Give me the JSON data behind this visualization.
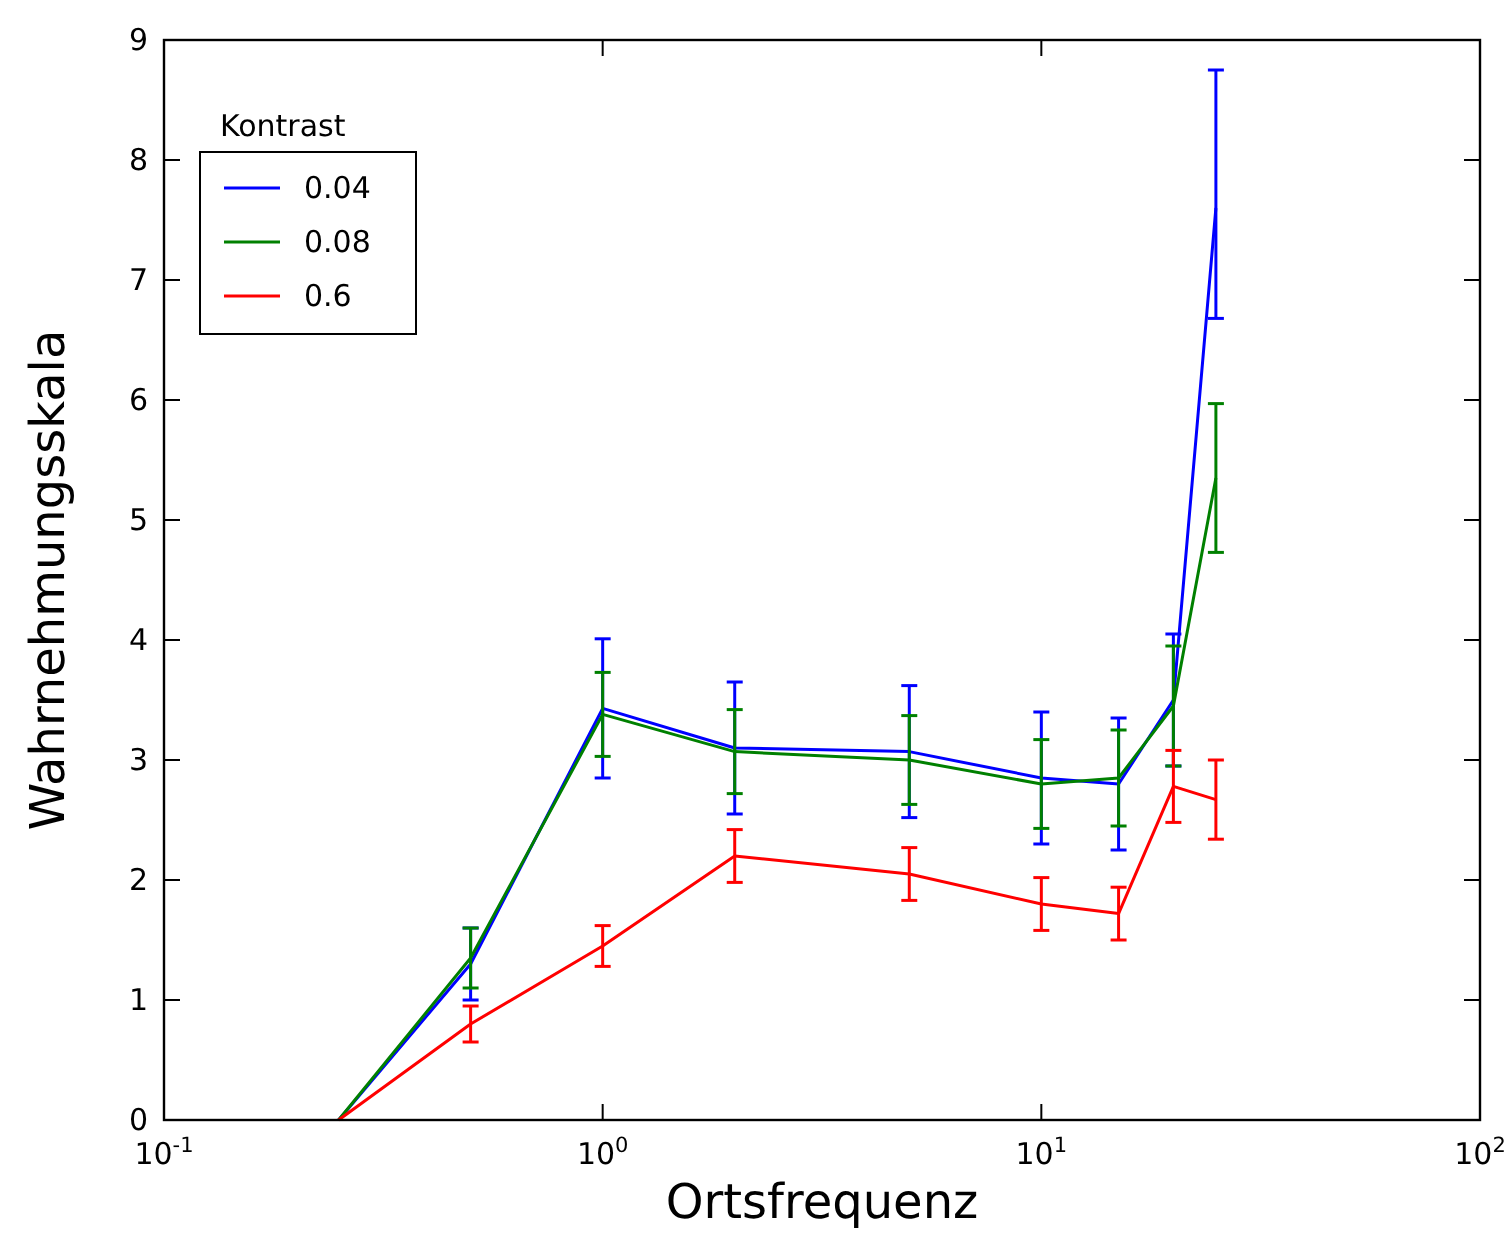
{
  "chart_data": {
    "type": "line",
    "xlabel": "Ortsfrequenz",
    "ylabel": "Wahrnehmungsskala",
    "legend_title": "Kontrast",
    "legend": "top left",
    "grid": false,
    "log": "x",
    "marker": "none",
    "line_style": "solid",
    "x": [
      0.25,
      0.5,
      1,
      2,
      5,
      10,
      15,
      20,
      25
    ],
    "xlim": [
      0.1,
      100
    ],
    "xticks": [
      {
        "value": 0.1,
        "label": "10$^{-1}$"
      },
      {
        "value": 1,
        "label": "10$^{0}$"
      },
      {
        "value": 10,
        "label": "10$^{1}$"
      },
      {
        "value": 100,
        "label": "10$^{2}$"
      }
    ],
    "ylim": [
      0,
      9
    ],
    "yticks": [
      0,
      1,
      2,
      3,
      4,
      5,
      6,
      7,
      8,
      9
    ],
    "series": [
      {
        "name": "0.04",
        "color": "#0000ff",
        "values": [
          0,
          1.3,
          3.43,
          3.1,
          3.07,
          2.85,
          2.8,
          3.5,
          7.6
        ],
        "errors": [
          null,
          0.3,
          0.58,
          0.55,
          0.55,
          0.55,
          0.55,
          0.55,
          [
            6.68,
            8.75
          ]
        ]
      },
      {
        "name": "0.08",
        "color": "#008000",
        "values": [
          0,
          1.35,
          3.38,
          3.07,
          3.0,
          2.8,
          2.85,
          3.45,
          5.35
        ],
        "errors": [
          null,
          0.25,
          0.35,
          0.35,
          0.37,
          0.37,
          0.4,
          0.5,
          0.62
        ]
      },
      {
        "name": "0.6",
        "color": "#ff0000",
        "values": [
          0,
          0.8,
          1.45,
          2.2,
          2.05,
          1.8,
          1.72,
          2.78,
          2.67
        ],
        "errors": [
          null,
          0.15,
          0.17,
          0.22,
          0.22,
          0.22,
          0.22,
          0.3,
          0.33
        ]
      }
    ]
  }
}
